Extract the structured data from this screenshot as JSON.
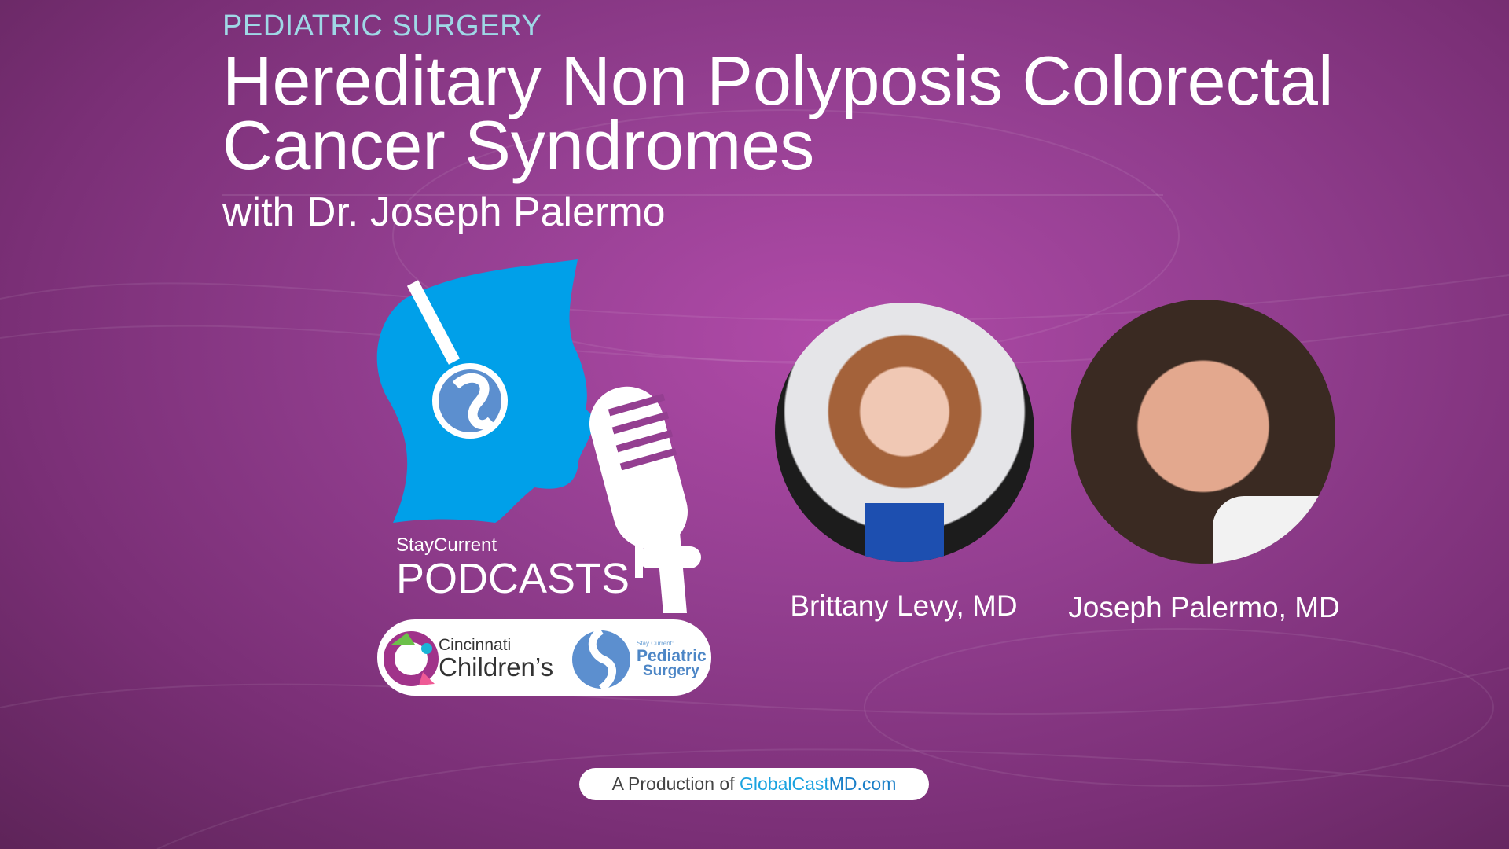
{
  "header": {
    "kicker": "PEDIATRIC SURGERY",
    "title_line1": "Hereditary Non Polyposis Colorectal",
    "title_line2": "Cancer Syndromes",
    "subtitle": "with Dr. Joseph Palermo"
  },
  "logo": {
    "staycurrent": "StayCurrent",
    "podcasts": "PODCASTS",
    "partner1": "Cincinnati Children's",
    "partner1_line1": "Cincinnati",
    "partner1_line2": "Children’s",
    "partner2_small": "Stay Current:",
    "partner2_line1": "Pediatric",
    "partner2_line2": "Surgery"
  },
  "speakers": [
    {
      "name": "Brittany Levy, MD"
    },
    {
      "name": "Joseph Palermo, MD"
    }
  ],
  "footer": {
    "prefix": "A Production of",
    "brand_a": "GlobalCast",
    "brand_b": "MD.com"
  },
  "colors": {
    "background": "#943f91",
    "kicker": "#9fd8e6",
    "head": "#00a0e9",
    "link": "#1aa3e0"
  }
}
